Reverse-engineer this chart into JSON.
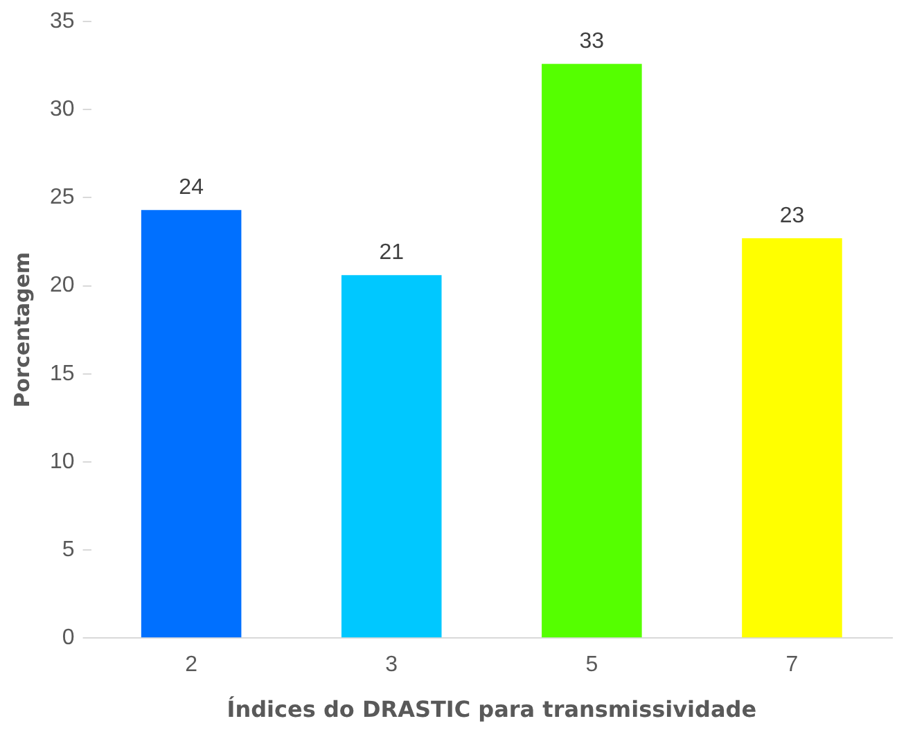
{
  "chart_data": {
    "type": "bar",
    "xlabel": "Índices do DRASTIC para transmissividade",
    "ylabel": "Porcentagem",
    "categories": [
      "2",
      "3",
      "5",
      "7"
    ],
    "values": [
      24.3,
      20.6,
      32.6,
      22.7
    ],
    "colors": [
      "#0070ff",
      "#00c8ff",
      "#55ff00",
      "#ffff00"
    ],
    "value_labels": [
      "24",
      "21",
      "33",
      "23"
    ],
    "ylim": [
      0,
      35
    ],
    "yticks": [
      0,
      5,
      10,
      15,
      20,
      25,
      30,
      35
    ],
    "grid": false,
    "legend": false
  }
}
